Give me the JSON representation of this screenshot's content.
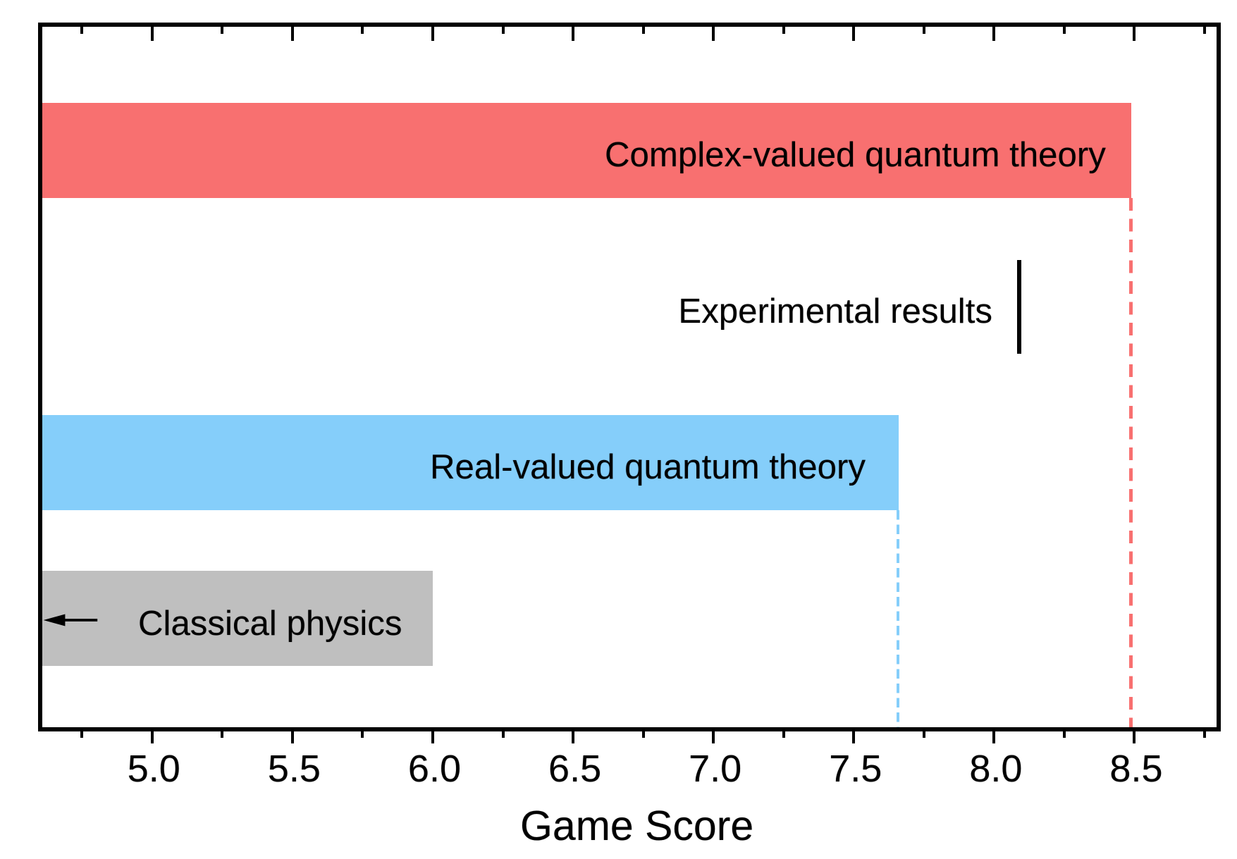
{
  "figure": {
    "background": "#ffffff"
  },
  "chart_data": {
    "type": "bar",
    "orientation": "horizontal",
    "xlabel": "Game Score",
    "xlim": [
      4.6,
      8.8
    ],
    "xticks_major": [
      5.0,
      5.5,
      6.0,
      6.5,
      7.0,
      7.5,
      8.0,
      8.5
    ],
    "xtick_labels": [
      "5.0",
      "5.5",
      "6.0",
      "6.5",
      "7.0",
      "7.5",
      "8.0",
      "8.5"
    ],
    "xticks_minor": [
      4.75,
      5.25,
      5.75,
      6.25,
      6.75,
      7.25,
      7.75,
      8.25,
      8.75
    ],
    "grid": false,
    "legend": false,
    "frame_color": "#000000",
    "rows": [
      {
        "label": "Complex-valued quantum theory",
        "kind": "bar",
        "value": 8.49,
        "color": "#f87070",
        "dashed_guide_line": true
      },
      {
        "label": "Experimental results",
        "kind": "marker-vertical-line",
        "value": 8.09,
        "color": "#000000",
        "dashed_guide_line": false
      },
      {
        "label": "Real-valued quantum theory",
        "kind": "bar",
        "value": 7.66,
        "color": "#85cefa",
        "dashed_guide_line": true
      },
      {
        "label": "Classical physics",
        "kind": "bar",
        "value": 6.0,
        "color": "#bfbfbf",
        "dashed_guide_line": false,
        "annotation": "left-arrow"
      }
    ]
  }
}
